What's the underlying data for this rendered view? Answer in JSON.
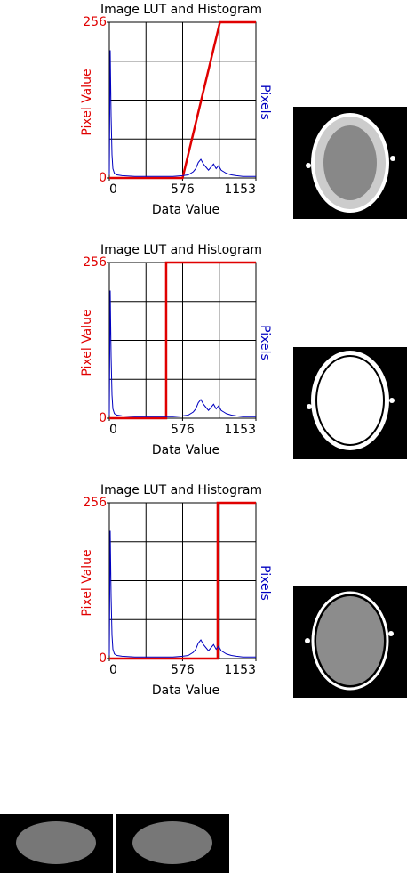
{
  "chart_data": [
    {
      "type": "line",
      "title": "Image LUT and Histogram",
      "x_label": "Data Value",
      "y_label": "Pixel Value",
      "y2_label": "Pixels",
      "xlim": [
        0,
        1153
      ],
      "xticks": [
        0,
        576,
        1153
      ],
      "ylim": [
        0,
        256
      ],
      "yticks": [
        0,
        256
      ],
      "y2lim": [
        0,
        100
      ],
      "grid": true,
      "series": [
        {
          "color": "#e00000",
          "x": [
            0,
            576,
            870,
            1153
          ],
          "values": [
            0,
            0,
            256,
            256
          ]
        },
        {
          "color": "#0000c0",
          "axis": "y2",
          "x": [
            0,
            7,
            14,
            21,
            28,
            40,
            60,
            100,
            200,
            300,
            400,
            500,
            576,
            620,
            660,
            680,
            700,
            720,
            740,
            760,
            780,
            800,
            820,
            840,
            860,
            880,
            900,
            920,
            960,
            1000,
            1050,
            1100,
            1153
          ],
          "values": [
            2,
            82,
            40,
            15,
            6,
            3,
            2,
            1.5,
            1,
            1,
            1,
            1,
            1.5,
            2,
            4,
            6,
            10,
            12,
            9,
            7,
            5,
            7,
            9,
            6,
            8,
            5,
            4,
            3,
            2,
            1.5,
            1,
            1,
            1
          ]
        }
      ]
    },
    {
      "type": "line",
      "title": "Image LUT and Histogram",
      "x_label": "Data Value",
      "y_label": "Pixel Value",
      "y2_label": "Pixels",
      "xlim": [
        0,
        1153
      ],
      "xticks": [
        0,
        576,
        1153
      ],
      "ylim": [
        0,
        256
      ],
      "yticks": [
        0,
        256
      ],
      "y2lim": [
        0,
        100
      ],
      "grid": true,
      "series": [
        {
          "color": "#e00000",
          "x": [
            0,
            447,
            447,
            1153
          ],
          "values": [
            0,
            0,
            256,
            256
          ]
        },
        {
          "color": "#0000c0",
          "axis": "y2",
          "x": [
            0,
            7,
            14,
            21,
            28,
            40,
            60,
            100,
            200,
            300,
            400,
            500,
            576,
            620,
            660,
            680,
            700,
            720,
            740,
            760,
            780,
            800,
            820,
            840,
            860,
            880,
            900,
            920,
            960,
            1000,
            1050,
            1100,
            1153
          ],
          "values": [
            2,
            82,
            40,
            15,
            6,
            3,
            2,
            1.5,
            1,
            1,
            1,
            1,
            1.5,
            2,
            4,
            6,
            10,
            12,
            9,
            7,
            5,
            7,
            9,
            6,
            8,
            5,
            4,
            3,
            2,
            1.5,
            1,
            1,
            1
          ]
        }
      ]
    },
    {
      "type": "line",
      "title": "Image LUT and Histogram",
      "x_label": "Data Value",
      "y_label": "Pixel Value",
      "y2_label": "Pixels",
      "xlim": [
        0,
        1153
      ],
      "xticks": [
        0,
        576,
        1153
      ],
      "ylim": [
        0,
        256
      ],
      "yticks": [
        0,
        256
      ],
      "y2lim": [
        0,
        100
      ],
      "grid": true,
      "series": [
        {
          "color": "#e00000",
          "x": [
            0,
            852,
            852,
            1153
          ],
          "values": [
            0,
            0,
            256,
            256
          ]
        },
        {
          "color": "#0000c0",
          "axis": "y2",
          "x": [
            0,
            7,
            14,
            21,
            28,
            40,
            60,
            100,
            200,
            300,
            400,
            500,
            576,
            620,
            660,
            680,
            700,
            720,
            740,
            760,
            780,
            800,
            820,
            840,
            860,
            880,
            900,
            920,
            960,
            1000,
            1050,
            1100,
            1153
          ],
          "values": [
            2,
            82,
            40,
            15,
            6,
            3,
            2,
            1.5,
            1,
            1,
            1,
            1,
            1.5,
            2,
            4,
            6,
            10,
            12,
            9,
            7,
            5,
            7,
            9,
            6,
            8,
            5,
            4,
            3,
            2,
            1.5,
            1,
            1,
            1
          ]
        }
      ]
    }
  ]
}
